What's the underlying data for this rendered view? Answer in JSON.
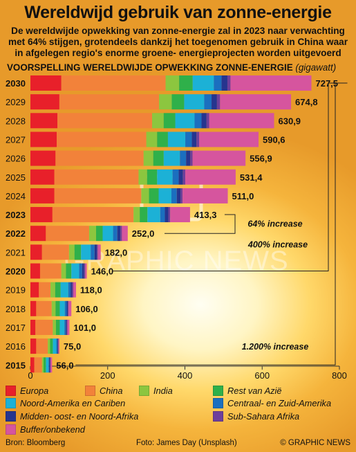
{
  "title": "Wereldwijd gebruik van zonne-energie",
  "subtitle": "De wereldwijde opwekking van zonne-energie zal in 2023 naar verwachting met 64% stijgen, grotendeels dankzij het toegenomen gebruik in China waar in afgelegen regio's enorme groene- energieprojecten worden uitgevoerd",
  "chart_heading": "VOORSPELLING WERELDWIJDE OPWEKKING ZONNE-ENERGIE",
  "chart_unit": "(gigawatt)",
  "legend": [
    {
      "name": "Europa",
      "color": "#e8202a"
    },
    {
      "name": "China",
      "color": "#f2823a"
    },
    {
      "name": "India",
      "color": "#8cc63f"
    },
    {
      "name": "Rest van Azië",
      "color": "#2fb04a"
    },
    {
      "name": "Noord-Amerika en Cariben",
      "color": "#1cb1d6"
    },
    {
      "name": "Centraal- en Zuid-Amerika",
      "color": "#1b6fbf"
    },
    {
      "name": "Midden- oost- en Noord-Afrika",
      "color": "#26358f"
    },
    {
      "name": "Sub-Sahara Afrika",
      "color": "#6e3f9b"
    },
    {
      "name": "Buffer/onbekend",
      "color": "#d6559e"
    }
  ],
  "footer": {
    "source": "Bron: Bloomberg",
    "photo": "Foto: James Day (Unsplash)",
    "credit": "© GRAPHIC NEWS"
  },
  "watermark": "GRAPHIC NEWS",
  "chart_data": {
    "type": "bar",
    "orientation": "horizontal",
    "stacked": true,
    "unit": "gigawatt",
    "categories": [
      "2030",
      "2029",
      "2028",
      "2027",
      "2026",
      "2025",
      "2024",
      "2023",
      "2022",
      "2021",
      "2020",
      "2019",
      "2018",
      "2017",
      "2016",
      "2015"
    ],
    "totals": [
      727.5,
      674.8,
      630.9,
      590.6,
      556.9,
      531.4,
      511.0,
      413.3,
      252.0,
      182.0,
      146.0,
      118.0,
      106.0,
      101.0,
      75.0,
      56.0
    ],
    "total_labels": [
      "727,5",
      "674,8",
      "630,9",
      "590,6",
      "556,9",
      "531,4",
      "511,0",
      "413,3",
      "252,0",
      "182,0",
      "146,0",
      "118,0",
      "106,0",
      "101,0",
      "75,0",
      "56,0"
    ],
    "bold_categories": [
      "2030",
      "2023",
      "2022",
      "2020",
      "2015"
    ],
    "series": [
      {
        "name": "Europa",
        "values": [
          80,
          75,
          70,
          68,
          65,
          62,
          62,
          57,
          40,
          30,
          25,
          22,
          15,
          13,
          15,
          10
        ]
      },
      {
        "name": "China",
        "values": [
          270,
          258,
          245,
          232,
          228,
          218,
          225,
          210,
          112,
          70,
          55,
          30,
          40,
          45,
          30,
          20
        ]
      },
      {
        "name": "India",
        "values": [
          35,
          33,
          30,
          28,
          25,
          22,
          20,
          16,
          18,
          14,
          12,
          12,
          10,
          8,
          6,
          4
        ]
      },
      {
        "name": "Rest van Azië",
        "values": [
          35,
          32,
          30,
          28,
          27,
          26,
          25,
          20,
          17,
          17,
          14,
          14,
          11,
          10,
          7,
          6
        ]
      },
      {
        "name": "Noord-Amerika en Cariben",
        "values": [
          55,
          52,
          50,
          45,
          42,
          40,
          33,
          33,
          27,
          25,
          20,
          20,
          13,
          12,
          9,
          7
        ]
      },
      {
        "name": "Centraal- en Zuid-Amerika",
        "values": [
          20,
          19,
          18,
          17,
          16,
          16,
          14,
          12,
          11,
          10,
          8,
          6,
          5,
          4,
          3,
          2
        ]
      },
      {
        "name": "Midden- oost- en Noord-Afrika",
        "values": [
          15,
          14,
          13,
          12,
          11,
          11,
          10,
          9,
          8,
          6,
          5,
          4,
          3,
          2,
          2,
          2
        ]
      },
      {
        "name": "Sub-Sahara Afrika",
        "values": [
          8,
          8,
          7,
          7,
          6,
          6,
          5,
          5,
          4,
          3,
          3,
          3,
          2,
          2,
          1,
          1
        ]
      },
      {
        "name": "Buffer/onbekend",
        "values": [
          209.5,
          183.8,
          167.9,
          153.6,
          136.9,
          130.4,
          117.0,
          51.3,
          15.0,
          7.0,
          4.0,
          7.0,
          7.0,
          5.0,
          2.0,
          4.0
        ]
      }
    ],
    "x_ticks": [
      0,
      200,
      400,
      600,
      800
    ],
    "xlim": [
      0,
      800
    ],
    "annotations": [
      {
        "text": "64% increase",
        "from": "2022",
        "to": "2023"
      },
      {
        "text": "400% increase",
        "from": "2020",
        "to": "2030"
      },
      {
        "text": "1.200% increase",
        "from": "2015",
        "to": "2030"
      }
    ]
  }
}
